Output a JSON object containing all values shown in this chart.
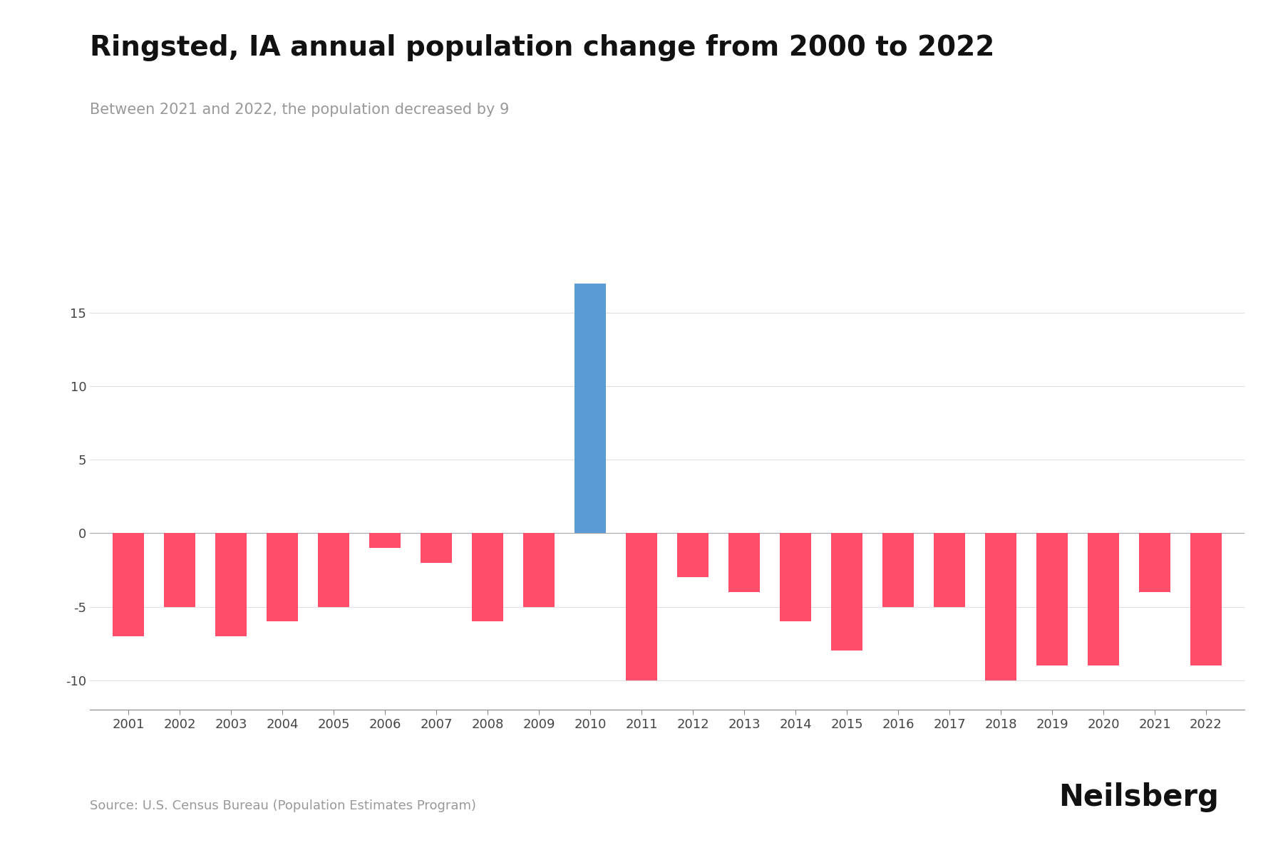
{
  "title": "Ringsted, IA annual population change from 2000 to 2022",
  "subtitle": "Between 2021 and 2022, the population decreased by 9",
  "source": "Source: U.S. Census Bureau (Population Estimates Program)",
  "branding": "Neilsberg",
  "years": [
    2001,
    2002,
    2003,
    2004,
    2005,
    2006,
    2007,
    2008,
    2009,
    2010,
    2011,
    2012,
    2013,
    2014,
    2015,
    2016,
    2017,
    2018,
    2019,
    2020,
    2021,
    2022
  ],
  "values": [
    -7,
    -5,
    -7,
    -6,
    -5,
    -1,
    -2,
    -6,
    -5,
    17,
    -10,
    -3,
    -4,
    -6,
    -8,
    -5,
    -5,
    -10,
    -9,
    -9,
    -4,
    -9
  ],
  "bar_colors_flag": [
    0,
    0,
    0,
    0,
    0,
    0,
    0,
    0,
    0,
    1,
    0,
    0,
    0,
    0,
    0,
    0,
    0,
    0,
    0,
    0,
    0,
    0
  ],
  "positive_color": "#5B9BD5",
  "negative_color": "#FF4D6A",
  "background_color": "#ffffff",
  "title_fontsize": 28,
  "subtitle_fontsize": 15,
  "source_fontsize": 13,
  "branding_fontsize": 30,
  "ylim": [
    -12,
    20
  ],
  "yticks": [
    -10,
    -5,
    0,
    5,
    10,
    15
  ],
  "grid_color": "#dddddd",
  "bar_width": 0.6
}
